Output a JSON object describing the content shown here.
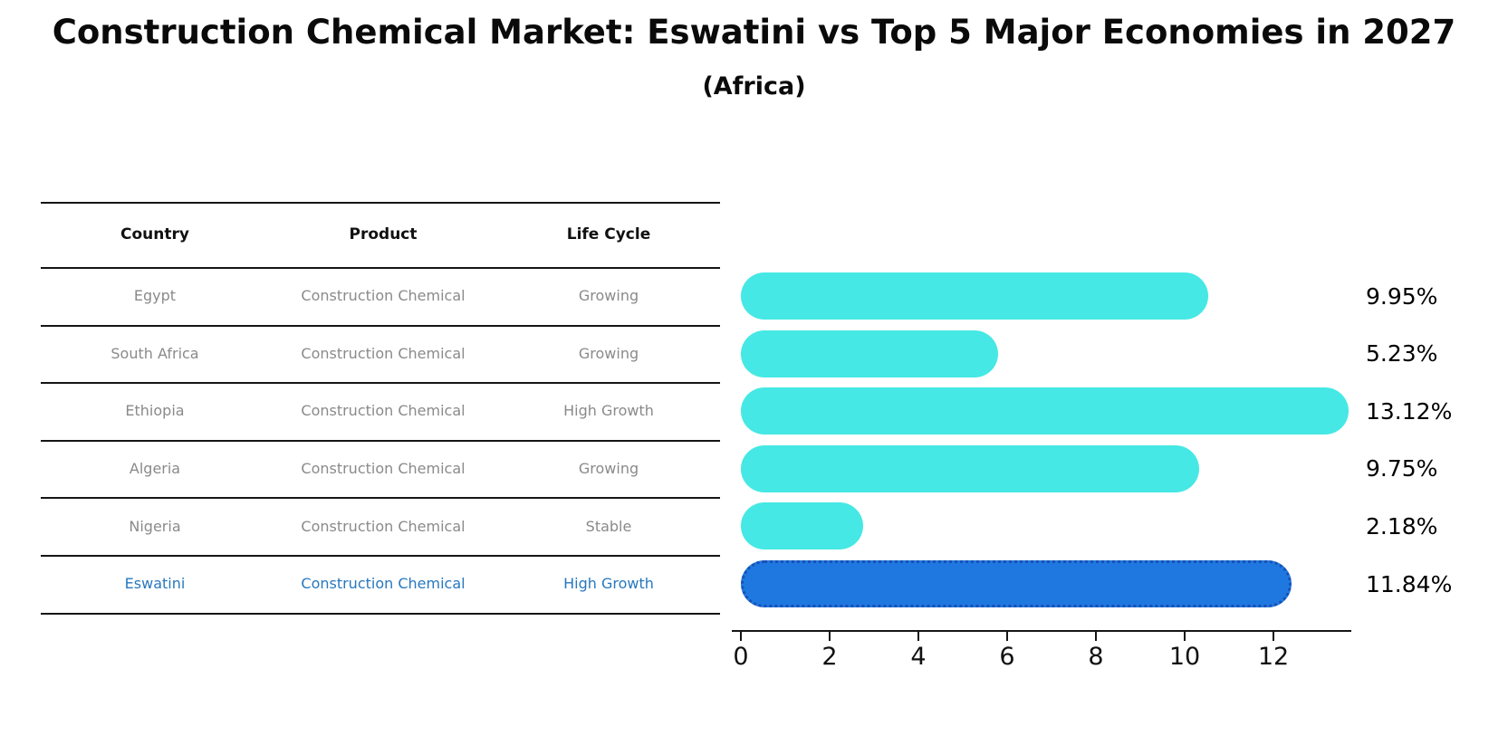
{
  "title": "Construction Chemical Market: Eswatini vs Top 5 Major Economies in 2027",
  "subtitle": "(Africa)",
  "table": {
    "headers": [
      "Country",
      "Product",
      "Life Cycle"
    ],
    "rows": [
      {
        "country": "Egypt",
        "product": "Construction Chemical",
        "life_cycle": "Growing"
      },
      {
        "country": "South Africa",
        "product": "Construction Chemical",
        "life_cycle": "Growing"
      },
      {
        "country": "Ethiopia",
        "product": "Construction Chemical",
        "life_cycle": "High Growth"
      },
      {
        "country": "Algeria",
        "product": "Construction Chemical",
        "life_cycle": "Growing"
      },
      {
        "country": "Nigeria",
        "product": "Construction Chemical",
        "life_cycle": "Stable"
      },
      {
        "country": "Eswatini",
        "product": "Construction Chemical",
        "life_cycle": "High Growth"
      }
    ],
    "highlight_row": "Eswatini"
  },
  "chart_data": {
    "type": "bar",
    "orientation": "horizontal",
    "title": "Construction Chemical Market: Eswatini vs Top 5 Major Economies in 2027",
    "subtitle": "(Africa)",
    "categories": [
      "Egypt",
      "South Africa",
      "Ethiopia",
      "Algeria",
      "Nigeria",
      "Eswatini"
    ],
    "values": [
      9.95,
      5.23,
      13.12,
      9.75,
      2.18,
      11.84
    ],
    "value_labels": [
      "9.95%",
      "5.23%",
      "13.12%",
      "9.75%",
      "2.18%",
      "11.84%"
    ],
    "highlight_index": 5,
    "x_ticks": [
      "0",
      "2",
      "4",
      "6",
      "8",
      "10",
      "12"
    ],
    "xlim": [
      0,
      13.7
    ],
    "grid": false,
    "legend": false,
    "bar_color": "#45e8e4",
    "highlight_bar_color": "#1e78e0",
    "highlight_border_color": "#1850b4"
  },
  "colors": {
    "background": "#ffffff",
    "text": "#0a0a0a",
    "table_text": "#8a8a8a",
    "highlight_text": "#2878be",
    "line": "#151515"
  }
}
